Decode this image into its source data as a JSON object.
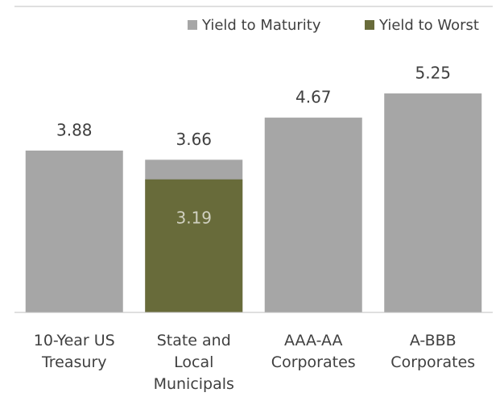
{
  "chart_data": {
    "type": "bar",
    "categories": [
      "10-Year US Treasury",
      "State and Local Municipals",
      "AAA-AA Corporates",
      "A-BBB Corporates"
    ],
    "series": [
      {
        "name": "Yield to Maturity",
        "color": "#a6a6a6",
        "values": [
          3.88,
          3.66,
          4.67,
          5.25
        ]
      },
      {
        "name": "Yield to Worst",
        "color": "#686b3a",
        "values": [
          null,
          3.19,
          null,
          null
        ]
      }
    ],
    "legend": "top-right"
  }
}
